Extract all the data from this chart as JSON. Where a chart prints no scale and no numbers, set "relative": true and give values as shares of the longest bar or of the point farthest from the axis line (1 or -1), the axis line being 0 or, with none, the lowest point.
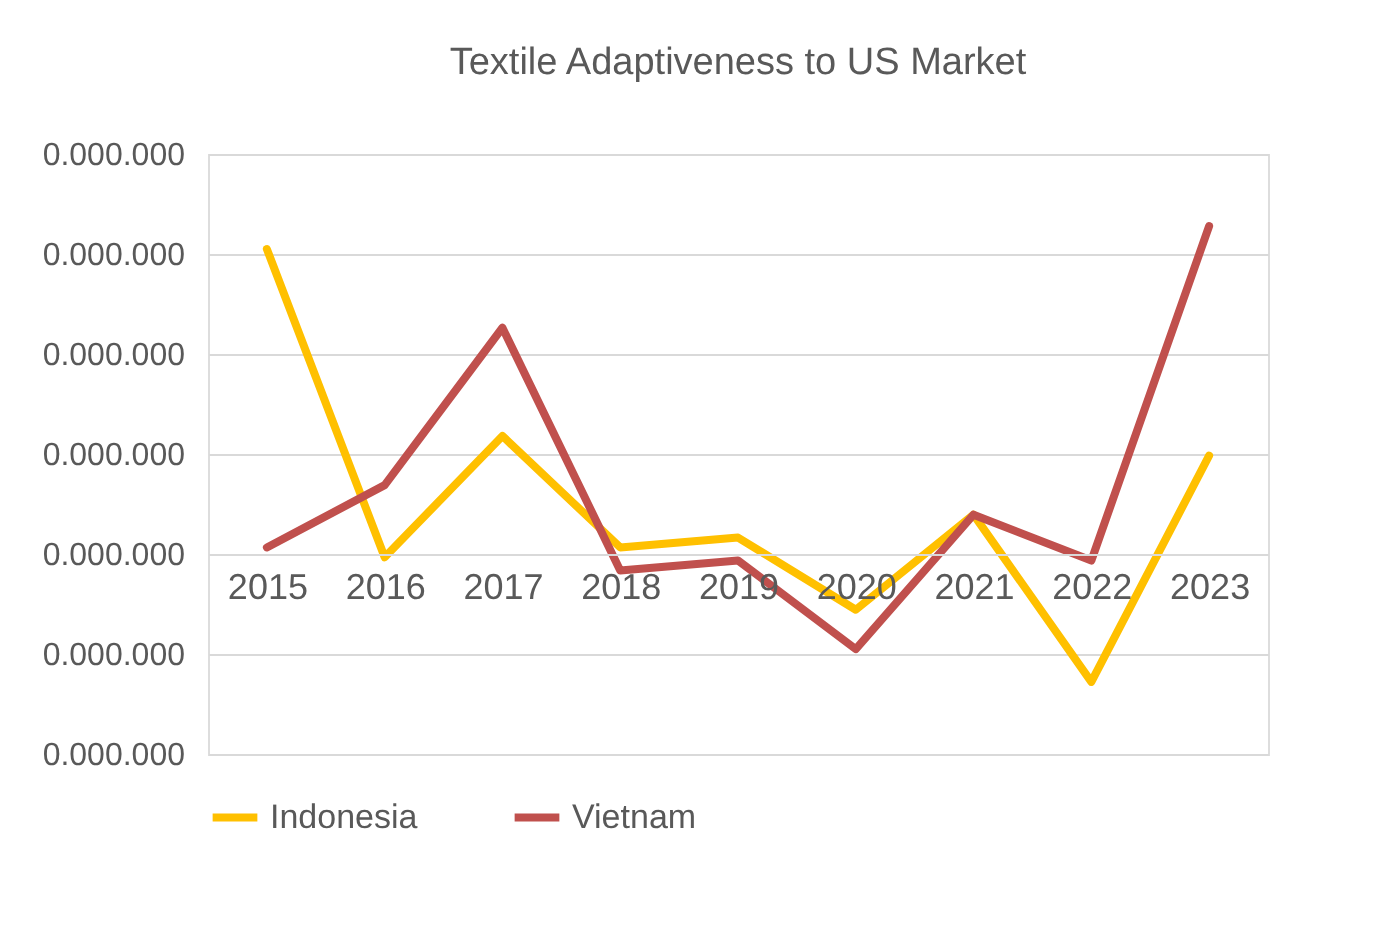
{
  "chart_data": {
    "type": "line",
    "title": "Textile Adaptiveness to US Market",
    "relative": true,
    "categories": [
      "2015",
      "2016",
      "2017",
      "2018",
      "2019",
      "2020",
      "2021",
      "2022",
      "2023"
    ],
    "series": [
      {
        "name": "Indonesia",
        "color": "#ffc000",
        "values": [
          0.93,
          -0.01,
          0.36,
          0.02,
          0.05,
          -0.17,
          0.12,
          -0.39,
          0.3
        ]
      },
      {
        "name": "Vietnam",
        "color": "#c0504d",
        "values": [
          0.02,
          0.21,
          0.69,
          -0.05,
          -0.02,
          -0.29,
          0.12,
          -0.02,
          1
        ]
      }
    ],
    "annotations": [
      "0.000.000",
      "0.000.000",
      "0.000.000",
      "0.000.000",
      "0.000.000",
      "0.000.000",
      "0.000.000"
    ],
    "grid": "y",
    "legend": "bottom",
    "marker": "none",
    "line_style": "solid"
  }
}
